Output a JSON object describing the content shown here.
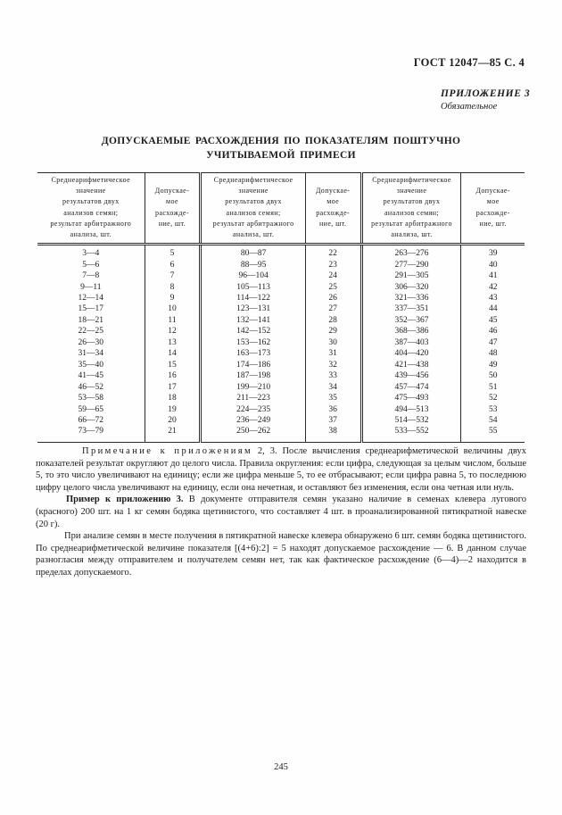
{
  "page": {
    "doc_ref": "ГОСТ 12047—85 С. 4",
    "appendix_label": "ПРИЛОЖЕНИЕ 3",
    "appendix_type": "Обязательное",
    "title": "ДОПУСКАЕМЫЕ РАСХОЖДЕНИЯ ПО ПОКАЗАТЕЛЯМ ПОШТУЧНО УЧИТЫВАЕМОЙ ПРИМЕСИ",
    "page_number": "245"
  },
  "table": {
    "headers": [
      "Среднеарифметическое\nзначение\nрезультатов двух\nанализов семян;\nрезультат арбитражного\nанализа, шт.",
      "Допускае-\nмое\nрасхожде-\nние, шт.",
      "Среднеарифметическое\nзначение\nрезультатов двух\nанализов семян;\nрезультат арбитражного\nанализа, шт.",
      "Допускае-\nмое\nрасхожде-\nние, шт.",
      "Среднеарифметическое\nзначение\nрезультатов двух\nанализов семян;\nрезультат арбитражного\nанализа, шт.",
      "Допускае-\nмое\nрасхожде-\nние, шт."
    ],
    "rows": [
      [
        "3—4",
        "5",
        "80—87",
        "22",
        "263—276",
        "39"
      ],
      [
        "5—6",
        "6",
        "88—95",
        "23",
        "277—290",
        "40"
      ],
      [
        "7—8",
        "7",
        "96—104",
        "24",
        "291—305",
        "41"
      ],
      [
        "9—11",
        "8",
        "105—113",
        "25",
        "306—320",
        "42"
      ],
      [
        "12—14",
        "9",
        "114—122",
        "26",
        "321—336",
        "43"
      ],
      [
        "15—17",
        "10",
        "123—131",
        "27",
        "337—351",
        "44"
      ],
      [
        "18—21",
        "11",
        "132—141",
        "28",
        "352—367",
        "45"
      ],
      [
        "22—25",
        "12",
        "142—152",
        "29",
        "368—386",
        "46"
      ],
      [
        "26—30",
        "13",
        "153—162",
        "30",
        "387—403",
        "47"
      ],
      [
        "31—34",
        "14",
        "163—173",
        "31",
        "404—420",
        "48"
      ],
      [
        "35—40",
        "15",
        "174—186",
        "32",
        "421—438",
        "49"
      ],
      [
        "41—45",
        "16",
        "187—198",
        "33",
        "439—456",
        "50"
      ],
      [
        "46—52",
        "17",
        "199—210",
        "34",
        "457—474",
        "51"
      ],
      [
        "53—58",
        "18",
        "211—223",
        "35",
        "475—493",
        "52"
      ],
      [
        "59—65",
        "19",
        "224—235",
        "36",
        "494—513",
        "53"
      ],
      [
        "66—72",
        "20",
        "236—249",
        "37",
        "514—532",
        "54"
      ],
      [
        "73—79",
        "21",
        "250—262",
        "38",
        "533—552",
        "55"
      ]
    ]
  },
  "notes": {
    "note_label": "Примечание к приложениям",
    "note_label_suffix": " 2, 3. ",
    "note_body": "После вычисления среднеарифметической величины двух показателей результат округляют до целого числа. Правила округления: если цифра, следующая за целым числом, больше 5, то это число увеличивают на единицу; если же цифра меньше 5, то ее отбрасывают; если цифра равна 5, то последнюю цифру целого числа увеличивают на единицу, если она нечетная, и оставляют без изменения, если она четная или нуль.",
    "example_label": "Пример к приложению 3.",
    "example_body": " В документе отправителя семян указано наличие в семенах клевера лугового (красного) 200 шт. на 1 кг семян бодяка щетинистого, что составляет 4 шт. в проанализированной пятикратной навеске (20 г).",
    "analysis_body": "При анализе семян в месте получения в пятикратной навеске клевера обнаружено 6 шт. семян бодяка щетинистого. По среднеарифметической величине показателя [(4+6):2] = 5 находят допускаемое расхождение — 6. В данном случае разногласия между отправителем и получателем семян нет, так как фактическое расхождение (6—4)—2 находится в пределах допускаемого."
  },
  "colors": {
    "text": "#1b1b1b",
    "border": "#2a2a2a",
    "background": "#fefefe"
  }
}
